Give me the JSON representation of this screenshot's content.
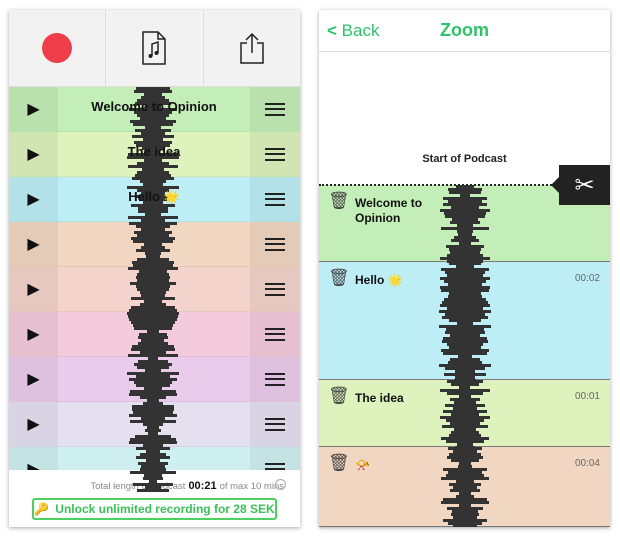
{
  "left": {
    "toolbar": {
      "record_icon": "record-dot",
      "doc_icon": "music-document-icon",
      "share_icon": "share-icon",
      "record_color": "#ef3e4a"
    },
    "rows": [
      {
        "title": "Welcome to Opinion",
        "color": "#c3eeb7"
      },
      {
        "title": "The idea",
        "color": "#ddf2bc"
      },
      {
        "title": "Hello 🌟",
        "color": "#bdeef5"
      },
      {
        "title": "",
        "color": "#f1d6c2"
      },
      {
        "title": "",
        "color": "#f3d3cc"
      },
      {
        "title": "",
        "color": "#f4cbdc"
      },
      {
        "title": "",
        "color": "#e9cceb"
      },
      {
        "title": "",
        "color": "#e5e0f0"
      },
      {
        "title": "",
        "color": "#cff0f0"
      }
    ],
    "footer": {
      "total_prefix": "Total length of podcast",
      "total_value": "00:21",
      "total_suffix": "of max 10 mins",
      "unlock_label": "Unlock unlimited recording for 28 SEK",
      "accent": "#4cd060"
    }
  },
  "right": {
    "nav": {
      "back": "Back",
      "title": "Zoom",
      "accent": "#2dc36a"
    },
    "start_label": "Start of Podcast",
    "rows": [
      {
        "title": "Welcome to Opinion",
        "time": "",
        "color": "#c3eeb7"
      },
      {
        "title": "Hello 🌟",
        "time": "00:02",
        "color": "#bdeef5"
      },
      {
        "title": "The idea",
        "time": "00:01",
        "color": "#ddf2bc"
      },
      {
        "title": "📯",
        "time": "00:04",
        "color": "#f1d6c2"
      }
    ]
  }
}
